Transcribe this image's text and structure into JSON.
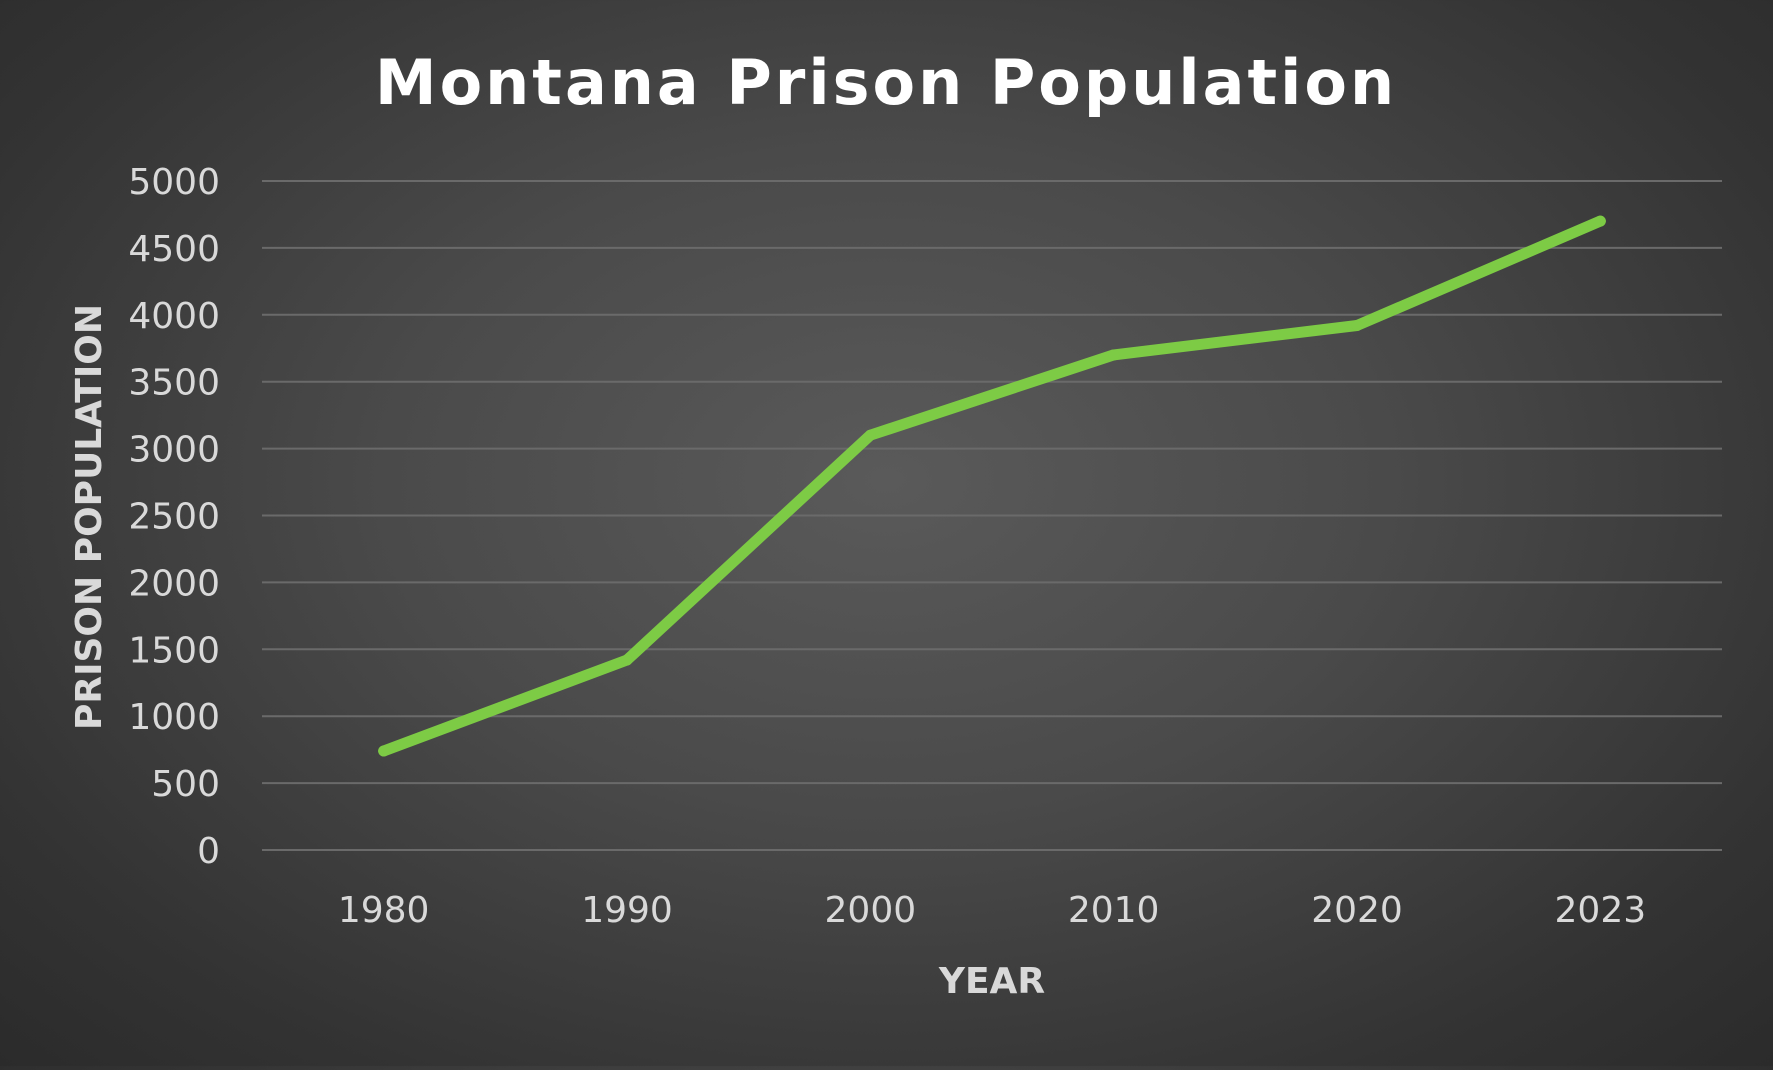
{
  "chart_data": {
    "type": "line",
    "title": "Montana Prison Population",
    "xlabel": "YEAR",
    "ylabel": "PRISON POPULATION",
    "categories": [
      "1980",
      "1990",
      "2000",
      "2010",
      "2020",
      "2023"
    ],
    "series": [
      {
        "values": [
          740,
          1420,
          3100,
          3700,
          3920,
          4700
        ],
        "color": "#7dcb45"
      }
    ],
    "ylim": [
      0,
      5000
    ],
    "yticks": [
      "0",
      "500",
      "1000",
      "1500",
      "2000",
      "2500",
      "3000",
      "3500",
      "4000",
      "4500",
      "5000"
    ],
    "grid": true,
    "legend": "none"
  }
}
